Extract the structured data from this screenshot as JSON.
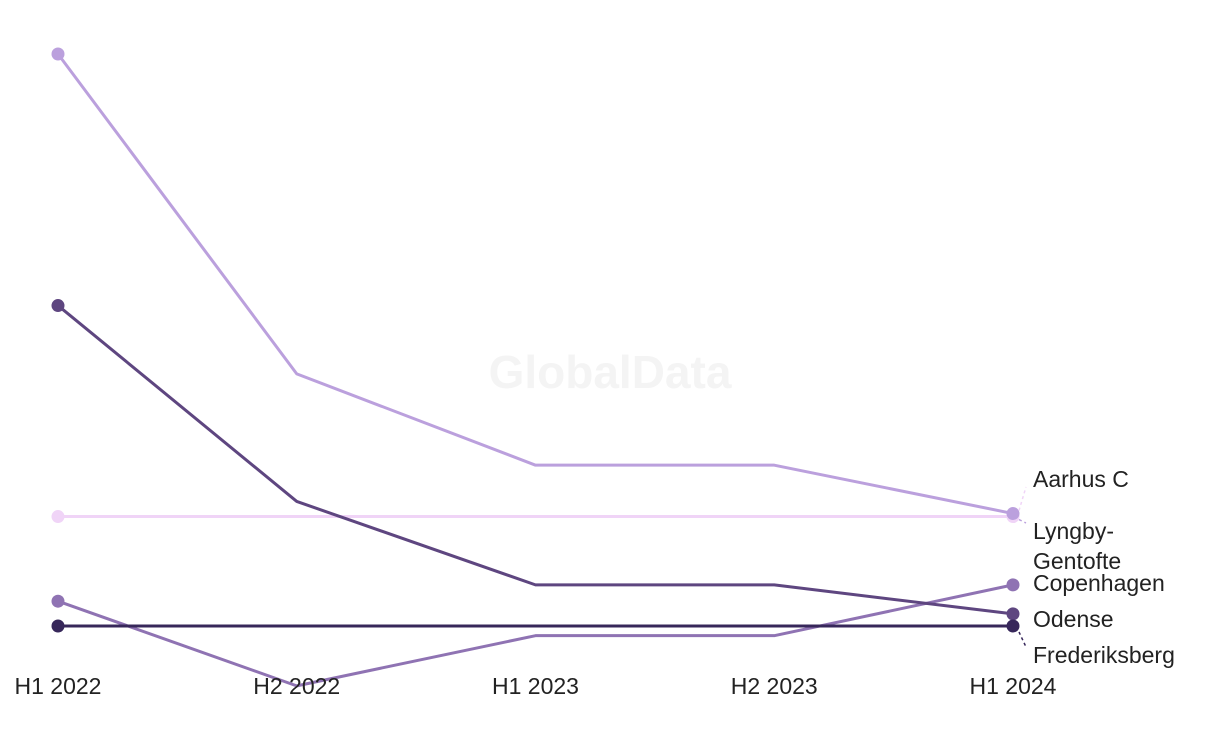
{
  "watermark": "GlobalData",
  "chart_data": {
    "type": "line",
    "title": "",
    "xlabel": "",
    "ylabel": "",
    "categories": [
      "H1 2022",
      "H2 2022",
      "H1 2023",
      "H2 2023",
      "H1 2024"
    ],
    "ylim": [
      0,
      100
    ],
    "grid": false,
    "legend": "end-of-line labels",
    "series": [
      {
        "name": "Aarhus C",
        "label_lines": [
          "Aarhus C"
        ],
        "color": "#f0d4f7",
        "values": [
          23.5,
          23.5,
          23.5,
          23.5,
          23.5
        ]
      },
      {
        "name": "Lyngby-Gentofte",
        "label_lines": [
          "Lyngby-",
          "Gentofte"
        ],
        "color": "#bba0dd",
        "values": [
          100,
          47.1,
          32.0,
          32.0,
          24.0
        ]
      },
      {
        "name": "Copenhagen",
        "label_lines": [
          "Copenhagen"
        ],
        "color": "#8f73b3",
        "values": [
          9.5,
          -4.5,
          3.8,
          3.8,
          12.2
        ]
      },
      {
        "name": "Odense",
        "label_lines": [
          "Odense"
        ],
        "color": "#5e4680",
        "values": [
          58.4,
          26.0,
          12.2,
          12.2,
          7.4
        ]
      },
      {
        "name": "Frederiksberg",
        "label_lines": [
          "Frederiksberg"
        ],
        "color": "#37275a",
        "values": [
          5.4,
          5.4,
          5.4,
          5.4,
          5.4
        ]
      }
    ]
  }
}
